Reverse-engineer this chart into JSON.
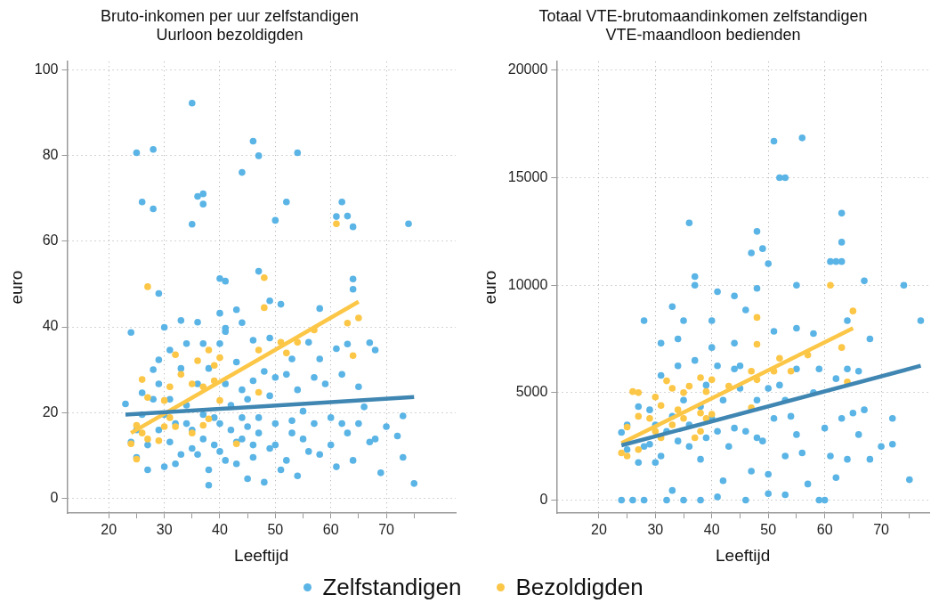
{
  "chart_data": [
    {
      "type": "scatter",
      "title": "Bruto-inkomen per uur zelfstandigen",
      "subtitle": "Uurloon bezoldigden",
      "xlabel": "Leeftijd",
      "ylabel": "euro",
      "xlim": [
        12.5,
        82.5
      ],
      "ylim": [
        -3.5,
        102
      ],
      "xticks": [
        20,
        {
          "value": 25,
          "label": null
        },
        30,
        {
          "value": 35,
          "label": null
        },
        40,
        {
          "value": 45,
          "label": null
        },
        50,
        {
          "value": 55,
          "label": null
        },
        60,
        {
          "value": 65,
          "label": null
        },
        70,
        {
          "value": 75,
          "label": null
        }
      ],
      "yticks": [
        0,
        20,
        40,
        60,
        80,
        100
      ],
      "grid": true,
      "legend": "bottom",
      "series": [
        {
          "name": "Zelfstandigen",
          "type": "scatter",
          "marker": "circle",
          "color": "#5ab4e5",
          "x": [
            35,
            25,
            28,
            46,
            47,
            54,
            44,
            36,
            37,
            37,
            26,
            28,
            35,
            52,
            50,
            62,
            61,
            63,
            64,
            74,
            40,
            41,
            47,
            29,
            64,
            64,
            49,
            51,
            43,
            58,
            24,
            30,
            33,
            36,
            40,
            44,
            41,
            46,
            49,
            56,
            67,
            68,
            63,
            61,
            23,
            24,
            25,
            26,
            27,
            28,
            29,
            29,
            30,
            31,
            31,
            32,
            33,
            34,
            34,
            35,
            36,
            37,
            37,
            38,
            38,
            39,
            40,
            40,
            41,
            41,
            41,
            42,
            43,
            43,
            44,
            44,
            45,
            45,
            46,
            46,
            47,
            47,
            48,
            48,
            49,
            50,
            50,
            51,
            52,
            52,
            53,
            53,
            54,
            54,
            55,
            56,
            57,
            57,
            58,
            58,
            59,
            60,
            60,
            61,
            62,
            62,
            63,
            64,
            65,
            65,
            66,
            67,
            68,
            69,
            70,
            72,
            73,
            73,
            75,
            25,
            26,
            27,
            28,
            29,
            30,
            31,
            32,
            33,
            34,
            35,
            36,
            37,
            38,
            39,
            40,
            42,
            43,
            44,
            45,
            46,
            49,
            50,
            53,
            55
          ],
          "values": [
            92.3,
            80.7,
            81.5,
            83.4,
            80,
            80.7,
            76.1,
            70.5,
            71.1,
            68.7,
            69.2,
            67.6,
            64,
            69.2,
            64.9,
            69.2,
            65.8,
            65.9,
            63.4,
            64.1,
            51.3,
            50.7,
            53,
            47.8,
            51.2,
            48.8,
            46.1,
            45.3,
            44,
            44.3,
            38.7,
            39.9,
            41.5,
            41.1,
            43.2,
            41,
            38.9,
            36.9,
            37.4,
            36.4,
            36.3,
            34.6,
            36,
            34.9,
            22,
            13.1,
            9.5,
            24.6,
            6.6,
            30,
            32.3,
            15.9,
            7.3,
            34.6,
            23.1,
            8,
            30.3,
            36.1,
            17.4,
            11.6,
            26.7,
            36.1,
            13.8,
            3,
            6.6,
            18.8,
            36.1,
            10.9,
            39.7,
            26.7,
            8.8,
            15.9,
            31.8,
            8,
            25.3,
            13.8,
            4.5,
            23.1,
            27.4,
            9.5,
            18.8,
            15.2,
            29.6,
            3.7,
            11.6,
            28.2,
            17.4,
            6.6,
            28.9,
            8.8,
            32.5,
            15.2,
            25.3,
            5.2,
            20.3,
            10.9,
            28.2,
            17.4,
            32.5,
            10.2,
            26.7,
            18.8,
            12.4,
            7.3,
            28.9,
            17.4,
            15.2,
            8.8,
            26,
            17.4,
            21.3,
            13.1,
            13.8,
            5.9,
            16.7,
            14.5,
            19.2,
            9.5,
            3.4,
            15.9,
            19.5,
            12.4,
            23.1,
            26.7,
            19.5,
            13.1,
            17.4,
            10.2,
            21.7,
            15.9,
            10.2,
            19.5,
            30.3,
            12.4,
            17.4,
            21.7,
            13.1,
            18.8,
            16.7,
            12.4,
            23.9,
            12.4,
            18.1,
            13.8
          ]
        },
        {
          "name": "Bezoldigden",
          "type": "scatter",
          "marker": "circle",
          "color": "#fcc646",
          "x": [
            61,
            27,
            48,
            48,
            63,
            65,
            64,
            57,
            54,
            52,
            51,
            47,
            38,
            40,
            39,
            36,
            32,
            33,
            26,
            31,
            35,
            37,
            39,
            40,
            30,
            27,
            31,
            25,
            26,
            27,
            24,
            25,
            29,
            32,
            35,
            38,
            37,
            43,
            47,
            30
          ],
          "values": [
            64.1,
            49.4,
            51.5,
            44.5,
            40.9,
            42.1,
            33.3,
            39.3,
            36.4,
            33.9,
            36.4,
            34.6,
            34.6,
            32.8,
            31,
            32.1,
            33.5,
            28.9,
            27.7,
            26,
            26.7,
            26,
            27.4,
            22.8,
            22.8,
            23.5,
            18.8,
            17,
            15.2,
            13.8,
            12.7,
            9.1,
            13.4,
            16.7,
            15.2,
            18.5,
            17,
            12.7,
            24.7,
            16.7
          ]
        },
        {
          "type": "line",
          "marker": "none",
          "color": "#3f86b2",
          "x": [
            23,
            75
          ],
          "values": [
            19.5,
            23.6
          ]
        },
        {
          "type": "line",
          "marker": "none",
          "color": "#fcc646",
          "x": [
            24,
            65
          ],
          "values": [
            15.2,
            45.9
          ]
        }
      ]
    },
    {
      "type": "scatter",
      "title": "Totaal VTE-brutomaandinkomen zelfstandigen",
      "subtitle": "VTE-maandloon bedienden",
      "xlabel": "Leeftijd",
      "ylabel": "euro",
      "xlim": [
        12.5,
        78.5
      ],
      "ylim": [
        -600,
        20400
      ],
      "xticks": [
        20,
        {
          "value": 25,
          "label": null
        },
        30,
        {
          "value": 35,
          "label": null
        },
        40,
        {
          "value": 45,
          "label": null
        },
        50,
        {
          "value": 55,
          "label": null
        },
        60,
        {
          "value": 65,
          "label": null
        },
        70,
        {
          "value": 75,
          "label": null
        }
      ],
      "yticks": [
        0,
        5000,
        10000,
        15000,
        20000
      ],
      "grid": true,
      "legend": "bottom",
      "series": [
        {
          "name": "Zelfstandigen",
          "type": "scatter",
          "marker": "circle",
          "color": "#5ab4e5",
          "x": [
            51,
            56,
            52,
            53,
            36,
            48,
            49,
            47,
            50,
            63,
            63,
            61,
            62,
            63,
            67,
            74,
            55,
            37,
            37,
            41,
            44,
            48,
            46,
            28,
            33,
            35,
            40,
            77,
            51,
            55,
            58,
            68,
            64,
            31,
            34,
            44,
            40,
            24,
            25,
            27,
            28,
            29,
            30,
            31,
            32,
            33,
            34,
            35,
            36,
            37,
            38,
            39,
            40,
            41,
            42,
            43,
            44,
            45,
            46,
            47,
            48,
            49,
            50,
            51,
            52,
            53,
            54,
            55,
            56,
            57,
            58,
            59,
            60,
            61,
            62,
            62,
            63,
            64,
            64,
            65,
            66,
            67,
            68,
            70,
            72,
            72,
            75,
            66,
            24,
            26,
            28,
            32,
            35,
            38,
            41,
            46,
            59,
            60,
            50,
            53,
            25,
            27,
            29,
            30,
            31,
            33,
            34,
            36,
            38,
            39,
            41,
            42,
            44,
            45,
            48,
            50,
            53,
            55
          ],
          "values": [
            16700,
            16850,
            15000,
            15000,
            12900,
            12500,
            11700,
            11500,
            11000,
            13350,
            12000,
            11100,
            11100,
            11100,
            10200,
            10000,
            10000,
            10400,
            10000,
            9700,
            9500,
            9850,
            8850,
            8350,
            9000,
            8350,
            8350,
            8350,
            7850,
            8000,
            7750,
            7500,
            8350,
            7300,
            7500,
            7300,
            7100,
            3150,
            3500,
            4350,
            2500,
            4200,
            1750,
            5800,
            3200,
            450,
            6250,
            4650,
            2500,
            6500,
            1900,
            5350,
            3800,
            6250,
            900,
            2500,
            6100,
            6250,
            3200,
            1350,
            4650,
            2750,
            1200,
            3800,
            5350,
            2050,
            3900,
            6100,
            2200,
            750,
            5000,
            6100,
            3350,
            2050,
            5650,
            1050,
            3800,
            6100,
            1900,
            4050,
            3050,
            4200,
            1900,
            2500,
            3800,
            2600,
            950,
            6000,
            0,
            0,
            0,
            0,
            0,
            0,
            150,
            0,
            0,
            0,
            300,
            250,
            2350,
            1750,
            2600,
            3500,
            2050,
            3900,
            2750,
            3500,
            4350,
            2900,
            3200,
            4650,
            3350,
            5200,
            2900,
            5200,
            4650,
            3050
          ]
        },
        {
          "name": "Bezoldigden",
          "type": "scatter",
          "marker": "circle",
          "color": "#fcc646",
          "x": [
            61,
            65,
            48,
            48,
            63,
            57,
            52,
            47,
            54,
            51,
            64,
            48,
            26,
            27,
            32,
            33,
            35,
            38,
            40,
            43,
            36,
            39,
            47,
            30,
            31,
            29,
            33,
            35,
            38,
            40,
            37,
            27,
            25,
            24,
            25,
            27,
            31,
            38,
            34,
            39,
            30
          ],
          "values": [
            10000,
            8800,
            8500,
            7250,
            7100,
            6750,
            6600,
            6000,
            6000,
            6000,
            5500,
            5600,
            5050,
            5000,
            5550,
            5200,
            5000,
            5700,
            5600,
            5300,
            5300,
            5050,
            4300,
            4800,
            4400,
            3800,
            3500,
            3800,
            4050,
            4000,
            2900,
            3900,
            3400,
            2200,
            2050,
            2350,
            2900,
            3200,
            4200,
            3800,
            3200
          ]
        },
        {
          "type": "line",
          "marker": "none",
          "color": "#3f86b2",
          "x": [
            24,
            77
          ],
          "values": [
            2550,
            6250
          ]
        },
        {
          "type": "line",
          "marker": "none",
          "color": "#fcc646",
          "x": [
            24,
            65
          ],
          "values": [
            2650,
            8000
          ]
        }
      ]
    }
  ]
}
